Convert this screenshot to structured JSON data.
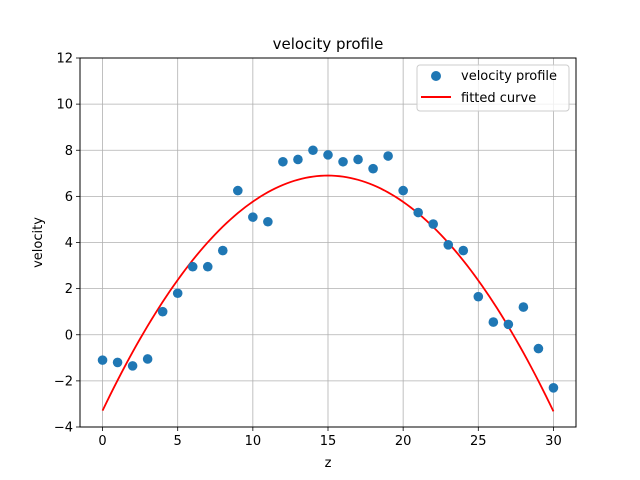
{
  "chart_data": {
    "type": "scatter",
    "title": "velocity profile",
    "xlabel": "z",
    "ylabel": "velocity",
    "xlim": [
      -1.5,
      31.5
    ],
    "ylim": [
      -4,
      12
    ],
    "xticks": [
      0,
      5,
      10,
      15,
      20,
      25,
      30
    ],
    "yticks": [
      -4,
      -2,
      0,
      2,
      4,
      6,
      8,
      10,
      12
    ],
    "grid": true,
    "legend_position": "top-right",
    "series": [
      {
        "name": "velocity profile",
        "kind": "scatter",
        "color": "#1f77b4",
        "x": [
          0,
          1,
          2,
          3,
          4,
          5,
          6,
          7,
          8,
          9,
          10,
          11,
          12,
          13,
          14,
          15,
          16,
          17,
          18,
          19,
          20,
          21,
          22,
          23,
          24,
          25,
          26,
          27,
          28,
          29,
          30
        ],
        "y": [
          -1.1,
          -1.2,
          -1.35,
          -1.05,
          1.0,
          1.8,
          2.95,
          2.95,
          3.65,
          6.25,
          5.1,
          4.9,
          7.5,
          7.6,
          8.0,
          7.8,
          7.5,
          7.6,
          7.2,
          7.75,
          6.25,
          5.3,
          4.8,
          3.9,
          3.65,
          1.65,
          0.55,
          0.45,
          1.2,
          -0.6,
          -2.3
        ]
      },
      {
        "name": "fitted curve",
        "kind": "line",
        "color": "#ff0000",
        "model": {
          "a": -0.04537,
          "b": 1.36,
          "c": -3.29
        },
        "x_range": [
          0,
          30
        ]
      }
    ]
  }
}
